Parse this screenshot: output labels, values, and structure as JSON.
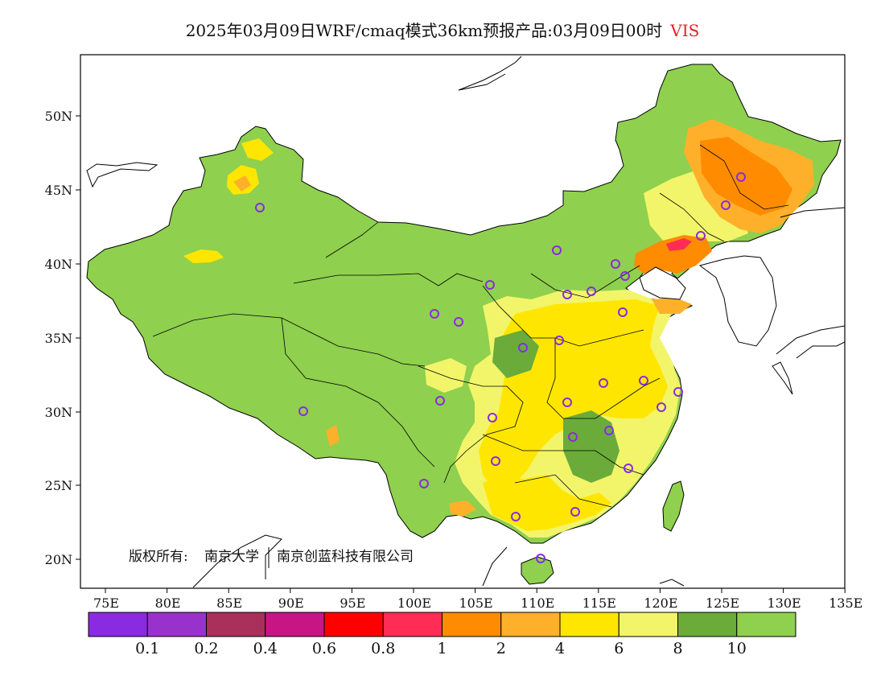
{
  "title": {
    "main": "2025年03月09日WRF/cmaq模式36km预报产品:03月09日00时",
    "variable": "VIS"
  },
  "copyright": {
    "label": "版权所有:",
    "org1": "南京大学",
    "org2": "南京创蓝科技有限公司"
  },
  "axes": {
    "lat_ticks": [
      "50N",
      "45N",
      "40N",
      "35N",
      "30N",
      "25N",
      "20N"
    ],
    "lon_ticks": [
      "75E",
      "80E",
      "85E",
      "90E",
      "95E",
      "100E",
      "105E",
      "110E",
      "115E",
      "120E",
      "125E",
      "130E",
      "135E"
    ]
  },
  "legend": {
    "colors": [
      "#8a2be2",
      "#9932cc",
      "#a8305a",
      "#c71585",
      "#ff0000",
      "#ff2c55",
      "#ff8c00",
      "#ffb02a",
      "#ffe600",
      "#f2f56a",
      "#6aab3a",
      "#8fd04e"
    ],
    "labels": [
      "0.1",
      "0.2",
      "0.4",
      "0.6",
      "0.8",
      "1",
      "2",
      "4",
      "6",
      "8",
      "10"
    ]
  },
  "colors": {
    "land_good": "#8fd04e",
    "land_dark_green": "#6aab3a",
    "light_yellow": "#f2f56a",
    "yellow": "#ffe600",
    "orange_light": "#ffb02a",
    "orange": "#ff8c00",
    "red": "#ff2c55",
    "station": "#8a2be2"
  },
  "stations_icon": "circle-station-icon"
}
